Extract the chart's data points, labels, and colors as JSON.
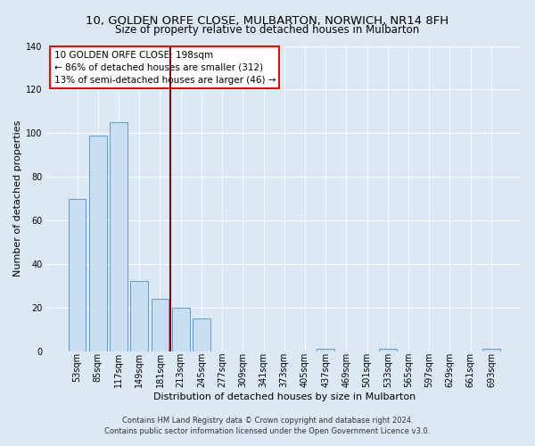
{
  "title": "10, GOLDEN ORFE CLOSE, MULBARTON, NORWICH, NR14 8FH",
  "subtitle": "Size of property relative to detached houses in Mulbarton",
  "xlabel": "Distribution of detached houses by size in Mulbarton",
  "ylabel": "Number of detached properties",
  "bin_labels": [
    "53sqm",
    "85sqm",
    "117sqm",
    "149sqm",
    "181sqm",
    "213sqm",
    "245sqm",
    "277sqm",
    "309sqm",
    "341sqm",
    "373sqm",
    "405sqm",
    "437sqm",
    "469sqm",
    "501sqm",
    "533sqm",
    "565sqm",
    "597sqm",
    "629sqm",
    "661sqm",
    "693sqm"
  ],
  "bar_heights": [
    70,
    99,
    105,
    32,
    24,
    20,
    15,
    0,
    0,
    0,
    0,
    0,
    1,
    0,
    0,
    1,
    0,
    0,
    0,
    0,
    1
  ],
  "bar_color": "#c8dff0",
  "bar_edge_color": "#5b9bd5",
  "vline_color": "#8b0000",
  "ylim": [
    0,
    140
  ],
  "yticks": [
    0,
    20,
    40,
    60,
    80,
    100,
    120,
    140
  ],
  "annotation_line1": "10 GOLDEN ORFE CLOSE: 198sqm",
  "annotation_line2": "← 86% of detached houses are smaller (312)",
  "annotation_line3": "13% of semi-detached houses are larger (46) →",
  "footer_line1": "Contains HM Land Registry data © Crown copyright and database right 2024.",
  "footer_line2": "Contains public sector information licensed under the Open Government Licence v3.0.",
  "bg_color": "#dce9f5",
  "title_fontsize": 9.5,
  "subtitle_fontsize": 8.5,
  "axis_label_fontsize": 8,
  "tick_fontsize": 7,
  "annotation_fontsize": 7.5
}
